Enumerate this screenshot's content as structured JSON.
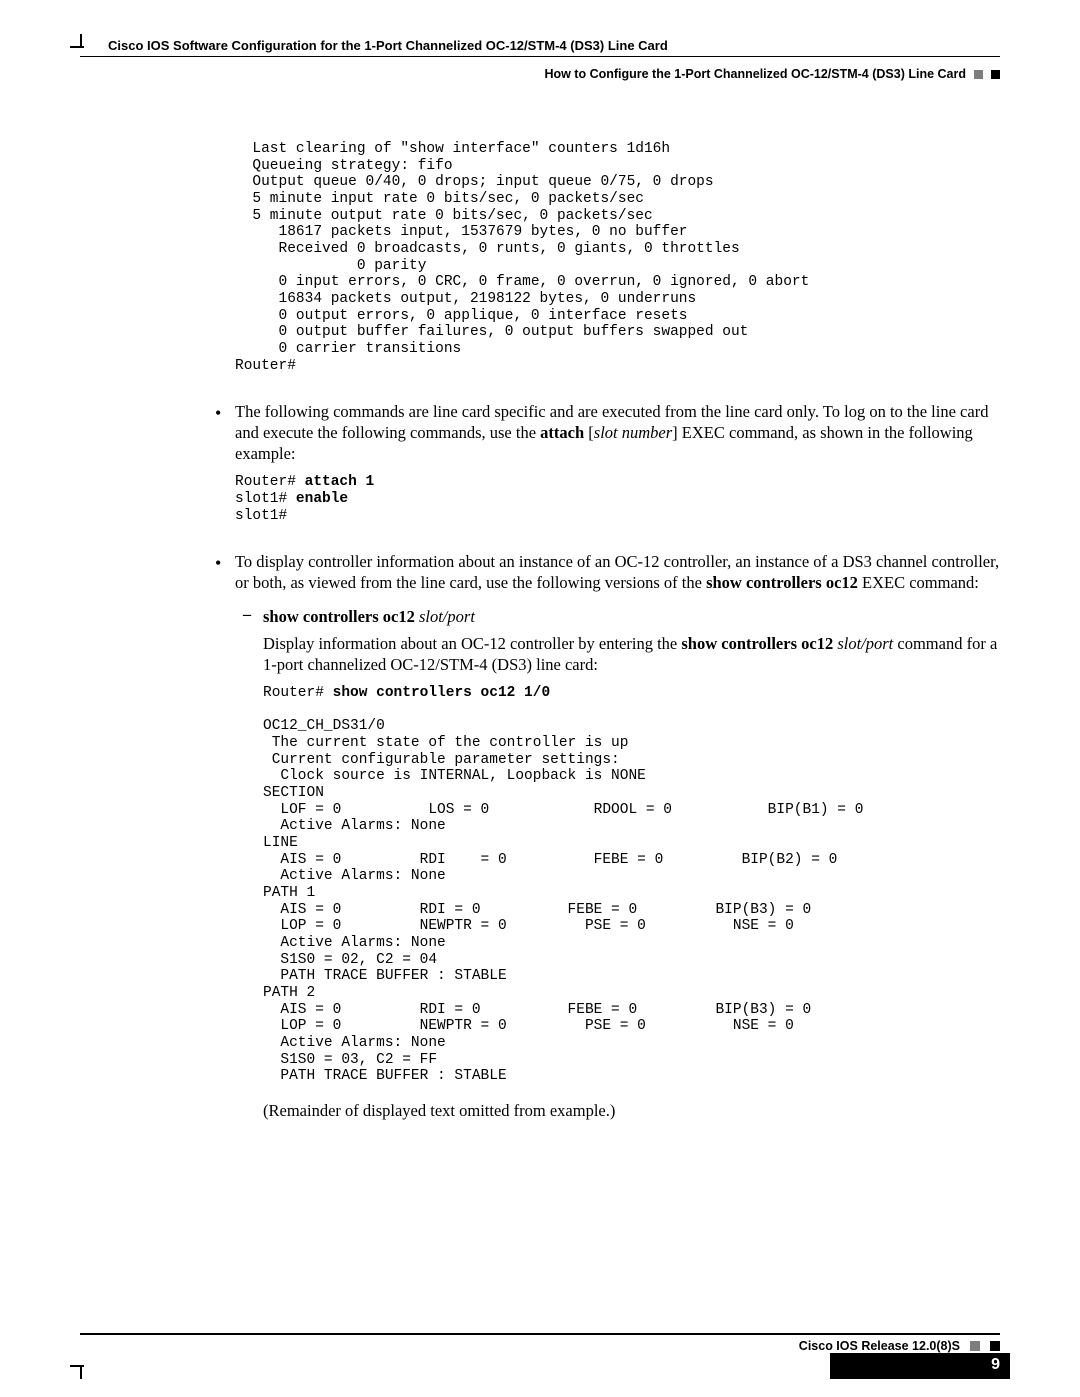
{
  "header": {
    "title": "Cisco IOS Software Configuration for the 1-Port Channelized OC-12/STM-4 (DS3) Line Card",
    "subtitle": "How to Configure the 1-Port Channelized OC-12/STM-4 (DS3) Line Card"
  },
  "code_block_1": {
    "lines": [
      "  Last clearing of \"show interface\" counters 1d16h",
      "  Queueing strategy: fifo",
      "  Output queue 0/40, 0 drops; input queue 0/75, 0 drops",
      "  5 minute input rate 0 bits/sec, 0 packets/sec",
      "  5 minute output rate 0 bits/sec, 0 packets/sec",
      "     18617 packets input, 1537679 bytes, 0 no buffer",
      "     Received 0 broadcasts, 0 runts, 0 giants, 0 throttles",
      "              0 parity",
      "     0 input errors, 0 CRC, 0 frame, 0 overrun, 0 ignored, 0 abort",
      "     16834 packets output, 2198122 bytes, 0 underruns",
      "     0 output errors, 0 applique, 0 interface resets",
      "     0 output buffer failures, 0 output buffers swapped out",
      "     0 carrier transitions",
      "Router#"
    ]
  },
  "bullet_1": {
    "pre": "The following commands are line card specific and are executed from the line card only. To log on to the line card and execute the following commands, use the ",
    "bold1": "attach",
    "open": " [",
    "ital1": "slot number",
    "close": "] EXEC command, as shown in the following example:"
  },
  "code_block_2": {
    "l1p": "Router# ",
    "l1b": "attach 1",
    "l2p": "slot1# ",
    "l2b": "enable",
    "l3": "slot1#"
  },
  "bullet_2": {
    "pre": "To display controller information about an instance of an OC-12 controller, an instance of a DS3 channel controller, or both, as viewed from the line card, use the following versions of the ",
    "bold1": "show controllers oc12",
    "post": " EXEC command:"
  },
  "sub_bullet": {
    "bold": "show controllers oc12",
    "ital": " slot/port"
  },
  "sub_para": {
    "pre": "Display information about an OC-12 controller by entering the ",
    "bold": "show controllers oc12",
    "ital": " slot/port",
    "post": " command for a 1-port channelized OC-12/STM-4 (DS3) line card:"
  },
  "code_block_3": {
    "l1p": "Router# ",
    "l1b": "show controllers oc12 1/0",
    "rest": [
      "",
      "OC12_CH_DS31/0",
      " The current state of the controller is up",
      " Current configurable parameter settings:",
      "  Clock source is INTERNAL, Loopback is NONE",
      "SECTION",
      "  LOF = 0          LOS = 0            RDOOL = 0           BIP(B1) = 0",
      "  Active Alarms: None",
      "LINE",
      "  AIS = 0         RDI    = 0          FEBE = 0         BIP(B2) = 0",
      "  Active Alarms: None",
      "PATH 1",
      "  AIS = 0         RDI = 0          FEBE = 0         BIP(B3) = 0",
      "  LOP = 0         NEWPTR = 0         PSE = 0          NSE = 0",
      "  Active Alarms: None",
      "  S1S0 = 02, C2 = 04",
      "  PATH TRACE BUFFER : STABLE",
      "PATH 2",
      "  AIS = 0         RDI = 0          FEBE = 0         BIP(B3) = 0",
      "  LOP = 0         NEWPTR = 0         PSE = 0          NSE = 0",
      "  Active Alarms: None",
      "  S1S0 = 03, C2 = FF",
      "  PATH TRACE BUFFER : STABLE"
    ]
  },
  "remainder": "(Remainder of displayed text omitted from example.)",
  "footer": {
    "release": "Cisco IOS Release 12.0(8)S",
    "page": "9"
  }
}
